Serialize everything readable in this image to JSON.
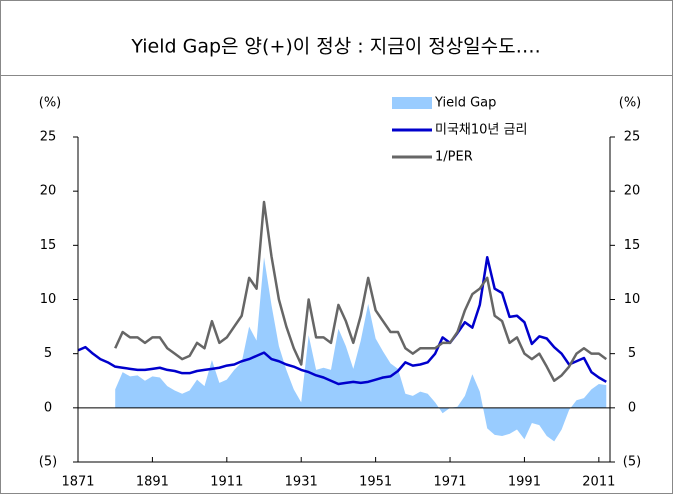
{
  "chart_data": {
    "type": "line",
    "title": "Yield Gap은 양(+)이 정상 : 지금이 정상일수도….",
    "ylabel": "(%)",
    "y2label": "(%)",
    "x": [
      1871,
      1873,
      1875,
      1877,
      1879,
      1881,
      1883,
      1885,
      1887,
      1889,
      1891,
      1893,
      1895,
      1897,
      1899,
      1901,
      1903,
      1905,
      1907,
      1909,
      1911,
      1913,
      1915,
      1917,
      1919,
      1921,
      1923,
      1925,
      1927,
      1929,
      1931,
      1933,
      1935,
      1937,
      1939,
      1941,
      1943,
      1945,
      1947,
      1949,
      1951,
      1953,
      1955,
      1957,
      1959,
      1961,
      1963,
      1965,
      1967,
      1969,
      1971,
      1973,
      1975,
      1977,
      1979,
      1981,
      1983,
      1985,
      1987,
      1989,
      1991,
      1993,
      1995,
      1997,
      1999,
      2001,
      2003,
      2005,
      2007,
      2009,
      2011,
      2013
    ],
    "series": [
      {
        "name": "Yield Gap",
        "color": "#99ccff",
        "style": "area",
        "values": [
          null,
          null,
          null,
          null,
          null,
          1.7,
          3.3,
          2.9,
          3.0,
          2.5,
          2.9,
          2.8,
          2.0,
          1.6,
          1.3,
          1.6,
          2.6,
          2.0,
          4.4,
          2.3,
          2.6,
          3.5,
          4.2,
          7.5,
          6.2,
          13.9,
          9.5,
          5.7,
          3.5,
          1.7,
          0.5,
          6.7,
          3.5,
          3.7,
          3.5,
          7.3,
          5.7,
          3.6,
          6.2,
          9.6,
          6.4,
          5.2,
          4.1,
          3.6,
          1.3,
          1.1,
          1.5,
          1.3,
          0.5,
          -0.5,
          0.0,
          0.1,
          1.1,
          3.1,
          1.5,
          -1.9,
          -2.5,
          -2.6,
          -2.4,
          -2.0,
          -2.9,
          -1.4,
          -1.6,
          -2.6,
          -3.1,
          -2.0,
          -0.2,
          0.7,
          0.9,
          1.7,
          2.2,
          2.1
        ]
      },
      {
        "name": "미국채10년 금리",
        "color": "#0000cc",
        "style": "line",
        "values": [
          5.3,
          5.6,
          5.0,
          4.5,
          4.2,
          3.8,
          3.7,
          3.6,
          3.5,
          3.5,
          3.6,
          3.7,
          3.5,
          3.4,
          3.2,
          3.2,
          3.4,
          3.5,
          3.6,
          3.7,
          3.9,
          4.0,
          4.3,
          4.5,
          4.8,
          5.1,
          4.5,
          4.3,
          4.0,
          3.8,
          3.5,
          3.3,
          3.0,
          2.8,
          2.5,
          2.2,
          2.3,
          2.4,
          2.3,
          2.4,
          2.6,
          2.8,
          2.9,
          3.4,
          4.2,
          3.9,
          4.0,
          4.2,
          5.0,
          6.5,
          6.0,
          6.9,
          7.9,
          7.4,
          9.5,
          13.9,
          11.0,
          10.6,
          8.4,
          8.5,
          7.9,
          5.9,
          6.6,
          6.4,
          5.6,
          5.0,
          4.0,
          4.3,
          4.6,
          3.3,
          2.8,
          2.4
        ]
      },
      {
        "name": "1/PER",
        "color": "#666666",
        "style": "line",
        "values": [
          null,
          null,
          null,
          null,
          null,
          5.5,
          7.0,
          6.5,
          6.5,
          6.0,
          6.5,
          6.5,
          5.5,
          5.0,
          4.5,
          4.8,
          6.0,
          5.5,
          8.0,
          6.0,
          6.5,
          7.5,
          8.5,
          12.0,
          11.0,
          19.0,
          14.0,
          10.0,
          7.5,
          5.5,
          4.0,
          10.0,
          6.5,
          6.5,
          6.0,
          9.5,
          8.0,
          6.0,
          8.5,
          12.0,
          9.0,
          8.0,
          7.0,
          7.0,
          5.5,
          5.0,
          5.5,
          5.5,
          5.5,
          6.0,
          6.0,
          7.0,
          9.0,
          10.5,
          11.0,
          12.0,
          8.5,
          8.0,
          6.0,
          6.5,
          5.0,
          4.5,
          5.0,
          3.8,
          2.5,
          3.0,
          3.8,
          5.0,
          5.5,
          5.0,
          5.0,
          4.5
        ]
      }
    ],
    "xlim": [
      1871,
      2014
    ],
    "xticks": [
      1871,
      1891,
      1911,
      1931,
      1951,
      1971,
      1991,
      2011
    ],
    "ylim": [
      -5,
      25
    ],
    "yticks": [
      {
        "value": -5,
        "label": "(5)"
      },
      0,
      5,
      10,
      15,
      20,
      25
    ],
    "y2lim": [
      -5,
      25
    ],
    "y2ticks": [
      {
        "value": -5,
        "label": "(5)"
      },
      0,
      5,
      10,
      15,
      20,
      25
    ],
    "legend": "upper right"
  }
}
